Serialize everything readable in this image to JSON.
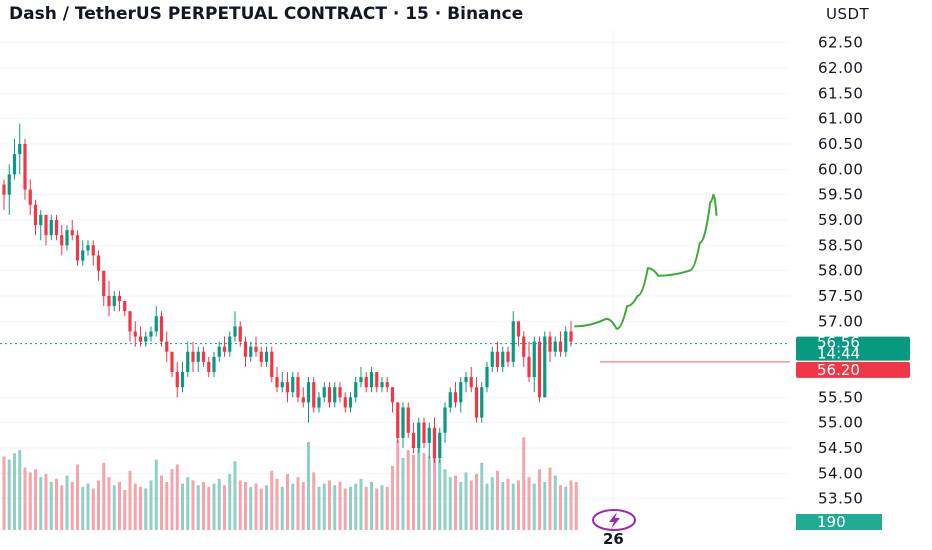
{
  "header": {
    "title": "Dash / TetherUS PERPETUAL CONTRACT · 15 · Binance",
    "currency": "USDT"
  },
  "colors": {
    "up": "#089981",
    "down": "#f23645",
    "up_volume": "#8fcfc6",
    "down_volume": "#f4a4aa",
    "drawing": "#3ea83a",
    "grid": "#f0f3fa",
    "lightning_badge": "#9c27b0"
  },
  "icons": {
    "badge": "lightning-icon"
  },
  "chart_data": {
    "type": "candlestick",
    "title": "Dash / TetherUS PERPETUAL CONTRACT · 15 · Binance",
    "price_unit": "USDT",
    "y_range": [
      53.0,
      62.75
    ],
    "y_ticks": [
      "62.50",
      "62.00",
      "61.50",
      "61.00",
      "60.50",
      "60.00",
      "59.50",
      "59.00",
      "58.50",
      "58.00",
      "57.50",
      "57.00",
      "55.50",
      "55.00",
      "54.50",
      "54.00",
      "53.50"
    ],
    "x_ticks": [
      {
        "label": "26",
        "index": 116
      }
    ],
    "last_price": {
      "value": "56.56",
      "countdown": "14:44"
    },
    "marked_level": {
      "value": "56.20"
    },
    "volume_label": "190",
    "grid": true,
    "candles": [
      [
        59.7,
        59.8,
        59.2,
        59.5
      ],
      [
        59.5,
        60.1,
        59.1,
        59.9
      ],
      [
        59.9,
        60.6,
        59.8,
        60.3
      ],
      [
        60.3,
        60.9,
        59.9,
        60.5
      ],
      [
        60.5,
        60.6,
        59.4,
        59.6
      ],
      [
        59.6,
        59.8,
        59.1,
        59.3
      ],
      [
        59.3,
        59.4,
        58.7,
        58.9
      ],
      [
        58.9,
        59.2,
        58.6,
        59.1
      ],
      [
        59.1,
        59.1,
        58.5,
        58.7
      ],
      [
        58.7,
        59.1,
        58.6,
        59.0
      ],
      [
        59.0,
        59.1,
        58.6,
        58.7
      ],
      [
        58.7,
        58.9,
        58.3,
        58.5
      ],
      [
        58.5,
        58.9,
        58.4,
        58.8
      ],
      [
        58.8,
        59.0,
        58.6,
        58.7
      ],
      [
        58.7,
        58.8,
        58.1,
        58.2
      ],
      [
        58.2,
        58.6,
        58.1,
        58.4
      ],
      [
        58.4,
        58.6,
        58.3,
        58.5
      ],
      [
        58.5,
        58.6,
        58.1,
        58.3
      ],
      [
        58.3,
        58.4,
        57.8,
        58.0
      ],
      [
        58.0,
        58.0,
        57.3,
        57.5
      ],
      [
        57.5,
        57.8,
        57.1,
        57.3
      ],
      [
        57.3,
        57.6,
        57.2,
        57.5
      ],
      [
        57.5,
        57.6,
        57.2,
        57.4
      ],
      [
        57.4,
        57.4,
        57.1,
        57.2
      ],
      [
        57.2,
        57.2,
        56.6,
        56.8
      ],
      [
        56.8,
        57.0,
        56.5,
        56.7
      ],
      [
        56.7,
        56.9,
        56.5,
        56.6
      ],
      [
        56.6,
        56.8,
        56.5,
        56.7
      ],
      [
        56.7,
        56.9,
        56.6,
        56.8
      ],
      [
        56.8,
        57.3,
        56.7,
        57.1
      ],
      [
        57.1,
        57.2,
        56.5,
        56.6
      ],
      [
        56.6,
        56.8,
        56.2,
        56.4
      ],
      [
        56.4,
        56.4,
        55.9,
        56.0
      ],
      [
        56.0,
        56.2,
        55.5,
        55.7
      ],
      [
        55.7,
        56.2,
        55.6,
        56.0
      ],
      [
        56.0,
        56.6,
        55.9,
        56.4
      ],
      [
        56.4,
        56.6,
        56.0,
        56.2
      ],
      [
        56.2,
        56.5,
        56.0,
        56.4
      ],
      [
        56.4,
        56.5,
        56.1,
        56.2
      ],
      [
        56.2,
        56.3,
        55.9,
        56.0
      ],
      [
        56.0,
        56.4,
        55.9,
        56.3
      ],
      [
        56.3,
        56.6,
        56.2,
        56.5
      ],
      [
        56.5,
        56.7,
        56.3,
        56.4
      ],
      [
        56.4,
        56.8,
        56.3,
        56.7
      ],
      [
        56.7,
        57.2,
        56.6,
        56.9
      ],
      [
        56.9,
        57.0,
        56.5,
        56.6
      ],
      [
        56.6,
        56.7,
        56.1,
        56.3
      ],
      [
        56.3,
        56.6,
        56.2,
        56.5
      ],
      [
        56.5,
        56.7,
        56.3,
        56.4
      ],
      [
        56.4,
        56.5,
        56.1,
        56.2
      ],
      [
        56.2,
        56.5,
        56.1,
        56.4
      ],
      [
        56.4,
        56.5,
        55.8,
        55.9
      ],
      [
        55.9,
        56.1,
        55.6,
        55.7
      ],
      [
        55.7,
        56.0,
        55.6,
        55.8
      ],
      [
        55.8,
        56.0,
        55.4,
        55.6
      ],
      [
        55.6,
        56.0,
        55.5,
        55.9
      ],
      [
        55.9,
        56.0,
        55.4,
        55.5
      ],
      [
        55.5,
        55.7,
        55.3,
        55.4
      ],
      [
        55.4,
        55.9,
        55.0,
        55.8
      ],
      [
        55.8,
        55.9,
        55.2,
        55.3
      ],
      [
        55.3,
        55.6,
        55.2,
        55.5
      ],
      [
        55.5,
        55.8,
        55.4,
        55.7
      ],
      [
        55.7,
        55.8,
        55.3,
        55.4
      ],
      [
        55.4,
        55.8,
        55.3,
        55.7
      ],
      [
        55.7,
        55.8,
        55.4,
        55.5
      ],
      [
        55.5,
        55.6,
        55.2,
        55.3
      ],
      [
        55.3,
        55.6,
        55.2,
        55.5
      ],
      [
        55.5,
        55.9,
        55.4,
        55.8
      ],
      [
        55.8,
        56.1,
        55.7,
        55.9
      ],
      [
        55.9,
        56.0,
        55.6,
        55.7
      ],
      [
        55.7,
        56.1,
        55.6,
        56.0
      ],
      [
        56.0,
        56.0,
        55.6,
        55.7
      ],
      [
        55.7,
        55.9,
        55.6,
        55.8
      ],
      [
        55.8,
        55.9,
        55.6,
        55.7
      ],
      [
        55.7,
        55.7,
        55.2,
        55.4
      ],
      [
        55.4,
        55.4,
        54.6,
        54.7
      ],
      [
        54.7,
        55.4,
        54.5,
        55.3
      ],
      [
        55.3,
        55.4,
        54.7,
        54.8
      ],
      [
        54.8,
        55.0,
        54.4,
        54.5
      ],
      [
        54.5,
        55.1,
        54.4,
        55.0
      ],
      [
        55.0,
        55.1,
        54.5,
        54.6
      ],
      [
        54.6,
        55.0,
        54.3,
        54.9
      ],
      [
        54.9,
        55.1,
        54.2,
        54.3
      ],
      [
        54.3,
        54.9,
        54.2,
        54.8
      ],
      [
        54.8,
        55.4,
        54.6,
        55.3
      ],
      [
        55.3,
        55.7,
        55.2,
        55.6
      ],
      [
        55.6,
        55.8,
        55.3,
        55.4
      ],
      [
        55.4,
        55.9,
        55.2,
        55.8
      ],
      [
        55.8,
        56.0,
        55.6,
        55.9
      ],
      [
        55.9,
        56.1,
        55.6,
        55.7
      ],
      [
        55.7,
        55.9,
        55.0,
        55.1
      ],
      [
        55.1,
        55.8,
        55.0,
        55.7
      ],
      [
        55.7,
        56.2,
        55.6,
        56.1
      ],
      [
        56.1,
        56.5,
        56.0,
        56.4
      ],
      [
        56.4,
        56.6,
        56.0,
        56.1
      ],
      [
        56.1,
        56.5,
        56.0,
        56.4
      ],
      [
        56.4,
        56.5,
        56.1,
        56.2
      ],
      [
        56.2,
        57.2,
        56.1,
        57.0
      ],
      [
        57.0,
        57.0,
        56.5,
        56.7
      ],
      [
        56.7,
        56.8,
        56.1,
        56.3
      ],
      [
        56.3,
        56.6,
        55.8,
        55.9
      ],
      [
        55.9,
        56.7,
        55.6,
        56.6
      ],
      [
        56.6,
        56.7,
        55.4,
        55.5
      ],
      [
        55.5,
        56.8,
        55.5,
        56.7
      ],
      [
        56.7,
        56.8,
        56.2,
        56.4
      ],
      [
        56.4,
        56.7,
        56.3,
        56.6
      ],
      [
        56.6,
        56.8,
        56.3,
        56.4
      ],
      [
        56.4,
        56.9,
        56.3,
        56.8
      ],
      [
        56.8,
        57.0,
        56.5,
        56.6
      ]
    ],
    "volumes": [
      46,
      44,
      48,
      50,
      39,
      36,
      38,
      33,
      35,
      30,
      32,
      28,
      34,
      30,
      41,
      27,
      29,
      26,
      31,
      42,
      33,
      28,
      30,
      25,
      37,
      29,
      27,
      26,
      31,
      44,
      34,
      30,
      38,
      41,
      29,
      33,
      31,
      28,
      30,
      27,
      29,
      32,
      28,
      35,
      43,
      31,
      30,
      27,
      29,
      26,
      28,
      37,
      32,
      27,
      35,
      29,
      33,
      30,
      55,
      36,
      27,
      29,
      31,
      28,
      30,
      26,
      27,
      29,
      32,
      27,
      30,
      26,
      28,
      27,
      40,
      56,
      45,
      50,
      47,
      52,
      48,
      46,
      51,
      44,
      38,
      33,
      34,
      30,
      36,
      31,
      35,
      42,
      29,
      33,
      37,
      30,
      32,
      29,
      31,
      58,
      33,
      29,
      38,
      30,
      39,
      34,
      28,
      27,
      31,
      30
    ],
    "projection_path": [
      [
        0,
        56.9
      ],
      [
        3,
        57.05
      ],
      [
        4,
        56.85
      ],
      [
        5,
        57.3
      ],
      [
        6,
        57.5
      ],
      [
        7,
        58.05
      ],
      [
        8,
        57.9
      ],
      [
        11,
        58.0
      ],
      [
        12,
        58.55
      ],
      [
        13,
        59.35
      ],
      [
        13.3,
        59.5
      ],
      [
        13.6,
        59.1
      ]
    ]
  }
}
